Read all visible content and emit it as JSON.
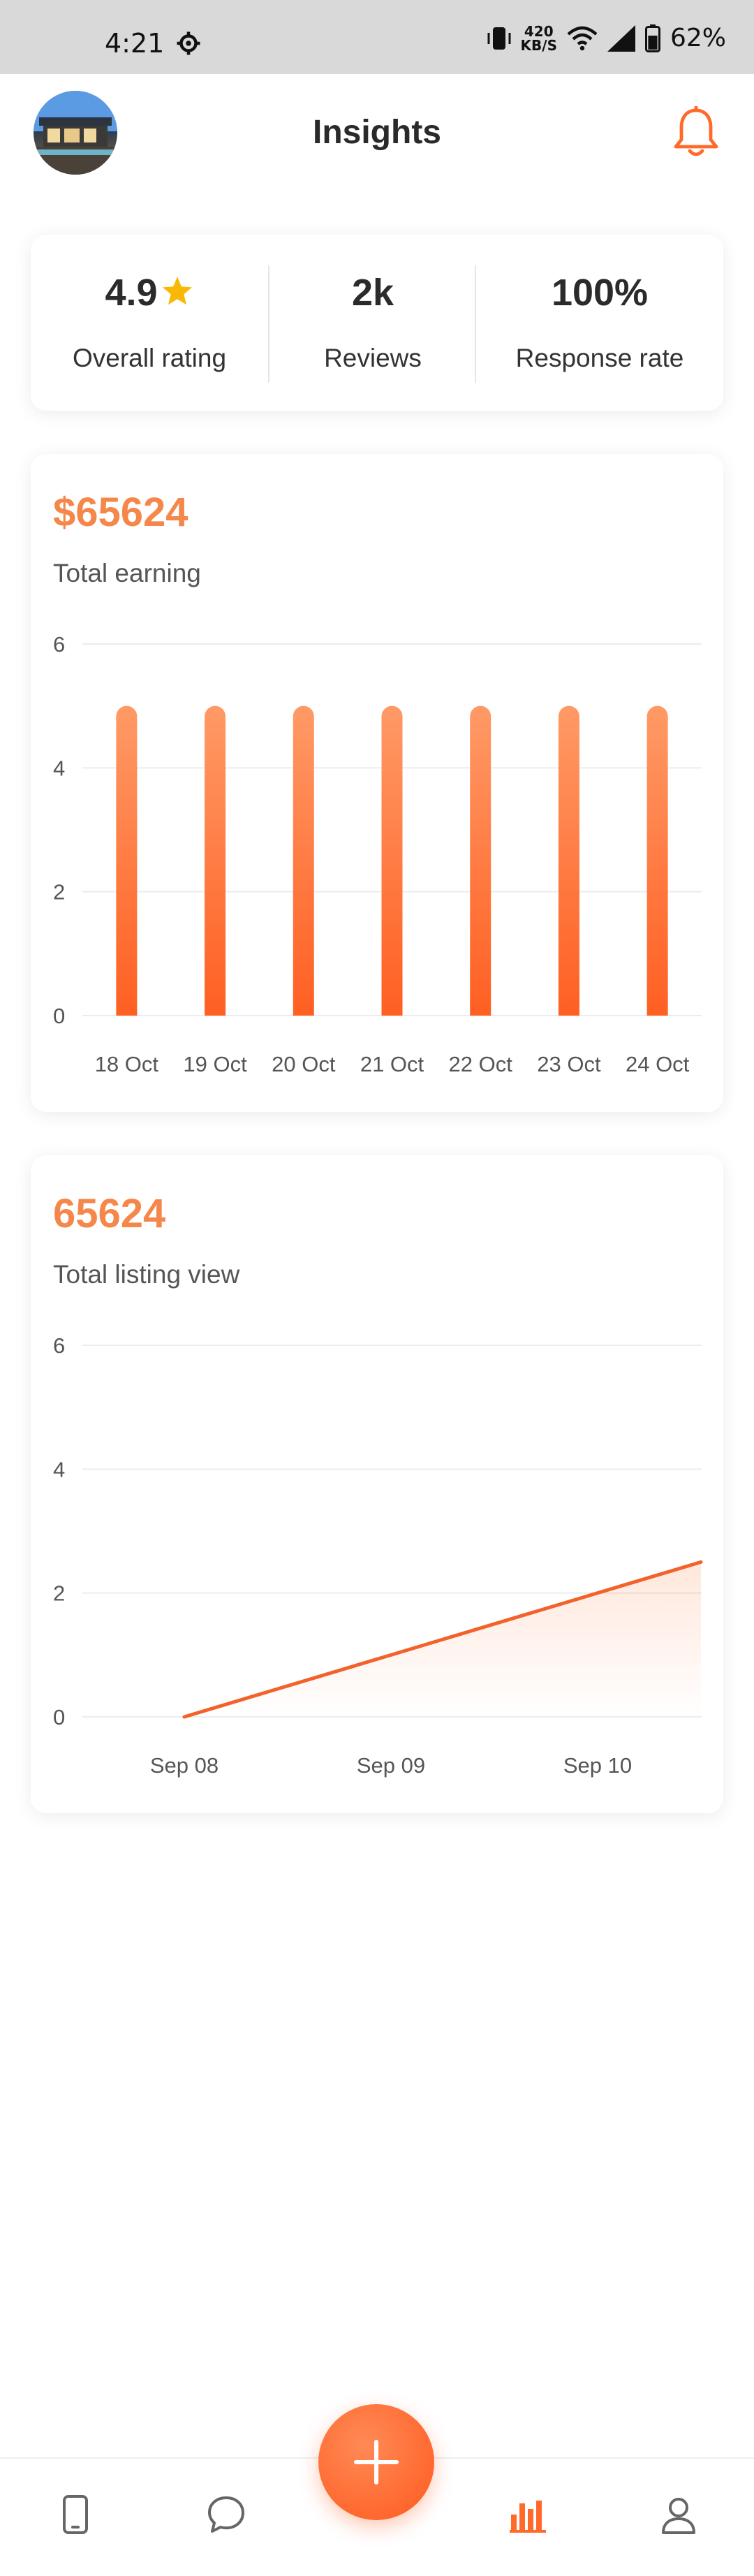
{
  "status_bar": {
    "time": "4:21",
    "net_speed_value": "420",
    "net_speed_unit": "KB/S",
    "battery": "62%"
  },
  "header": {
    "title": "Insights",
    "avatar_icon": "house-photo-avatar",
    "bell_icon": "bell-icon"
  },
  "stats": [
    {
      "value": "4.9",
      "label": "Overall rating",
      "icon": "star-icon"
    },
    {
      "value": "2k",
      "label": "Reviews"
    },
    {
      "value": "100%",
      "label": "Response rate"
    }
  ],
  "earnings": {
    "amount": "$65624",
    "label": "Total earning"
  },
  "views": {
    "amount": "65624",
    "label": "Total listing view"
  },
  "colors": {
    "accent": "#ff6a2b",
    "amount_text": "#f5874a",
    "star": "#f9b806"
  },
  "chart_data": [
    {
      "type": "bar",
      "categories": [
        "18 Oct",
        "19 Oct",
        "20 Oct",
        "21 Oct",
        "22 Oct",
        "23 Oct",
        "24 Oct"
      ],
      "values": [
        5,
        5,
        5,
        5,
        5,
        5,
        5
      ],
      "yticks": [
        0,
        2,
        4,
        6
      ],
      "ylim": [
        0,
        6
      ],
      "grid": true
    },
    {
      "type": "area",
      "categories": [
        "Sep 08",
        "Sep 09",
        "Sep 10"
      ],
      "x": [
        0,
        1,
        2,
        2.5
      ],
      "values": [
        0,
        1,
        2,
        2.5
      ],
      "yticks": [
        0,
        2,
        4,
        6
      ],
      "ylim": [
        0,
        6
      ],
      "grid": true
    }
  ],
  "bottom_nav": {
    "items": [
      {
        "icon": "phone-icon"
      },
      {
        "icon": "chat-icon"
      },
      {
        "icon": "add-icon"
      },
      {
        "icon": "bar-chart-icon"
      },
      {
        "icon": "profile-icon"
      }
    ]
  }
}
